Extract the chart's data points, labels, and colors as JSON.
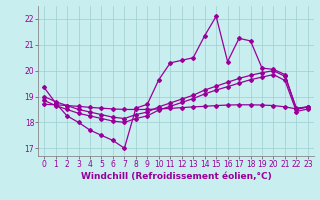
{
  "xlabel": "Windchill (Refroidissement éolien,°C)",
  "background_color": "#c8eef0",
  "line_color": "#990099",
  "xlim": [
    -0.5,
    23.5
  ],
  "ylim": [
    16.7,
    22.5
  ],
  "xticks": [
    0,
    1,
    2,
    3,
    4,
    5,
    6,
    7,
    8,
    9,
    10,
    11,
    12,
    13,
    14,
    15,
    16,
    17,
    18,
    19,
    20,
    21,
    22,
    23
  ],
  "yticks": [
    17,
    18,
    19,
    20,
    21,
    22
  ],
  "series1_y": [
    19.35,
    18.75,
    18.25,
    18.0,
    17.7,
    17.5,
    17.3,
    17.0,
    18.55,
    18.7,
    19.65,
    20.3,
    20.4,
    20.5,
    21.35,
    22.1,
    20.35,
    21.25,
    21.15,
    20.1,
    20.05,
    19.85,
    18.5,
    18.6
  ],
  "series2_y": [
    19.0,
    18.8,
    18.65,
    18.5,
    18.4,
    18.3,
    18.2,
    18.15,
    18.3,
    18.4,
    18.6,
    18.75,
    18.9,
    19.05,
    19.25,
    19.4,
    19.55,
    19.7,
    19.82,
    19.92,
    20.0,
    19.78,
    18.55,
    18.6
  ],
  "series3_y": [
    18.85,
    18.65,
    18.5,
    18.35,
    18.25,
    18.15,
    18.05,
    18.0,
    18.15,
    18.25,
    18.48,
    18.62,
    18.77,
    18.92,
    19.1,
    19.25,
    19.38,
    19.52,
    19.65,
    19.75,
    19.85,
    19.62,
    18.42,
    18.52
  ],
  "series4_y": [
    18.7,
    18.68,
    18.65,
    18.62,
    18.58,
    18.55,
    18.52,
    18.5,
    18.5,
    18.5,
    18.52,
    18.54,
    18.57,
    18.6,
    18.62,
    18.65,
    18.67,
    18.68,
    18.68,
    18.67,
    18.65,
    18.6,
    18.52,
    18.6
  ],
  "marker": "D",
  "markersize": 2,
  "linewidth": 0.9,
  "tick_fontsize": 5.5,
  "label_fontsize": 6.5
}
